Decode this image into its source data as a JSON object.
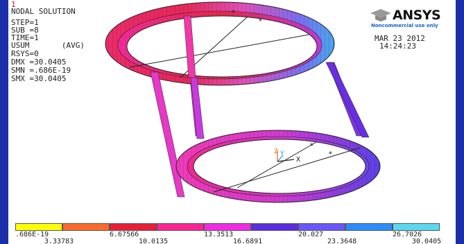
{
  "header": {
    "window_number": "1",
    "title": "NODAL SOLUTION",
    "info": [
      "STEP=1",
      "SUB =8",
      "TIME=1",
      "USUM       (AVG)",
      "RSYS=0",
      "DMX =30.0405",
      "SMN =.686E-19",
      "SMX =30.0405"
    ]
  },
  "logo": {
    "text": "ANSYS",
    "subtitle": "Noncommercial use only"
  },
  "timestamp": {
    "date": "MAR 23 2012",
    "time": "14:24:23"
  },
  "triad": {
    "x": "X",
    "y": "Y",
    "z": "Z"
  },
  "legend": {
    "colors": [
      "#ffff00",
      "#ff6a2a",
      "#ea1d38",
      "#ff2494",
      "#f02ae6",
      "#5a2ee0",
      "#6a55ff",
      "#2a8cff",
      "#5ad8f0"
    ],
    "top_labels": [
      ".686E-19",
      "6.67566",
      "13.3513",
      "20.027",
      "26.7026"
    ],
    "bottom_labels": [
      "3.33783",
      "10.0135",
      "16.6891",
      "23.3648",
      "30.0405"
    ]
  }
}
